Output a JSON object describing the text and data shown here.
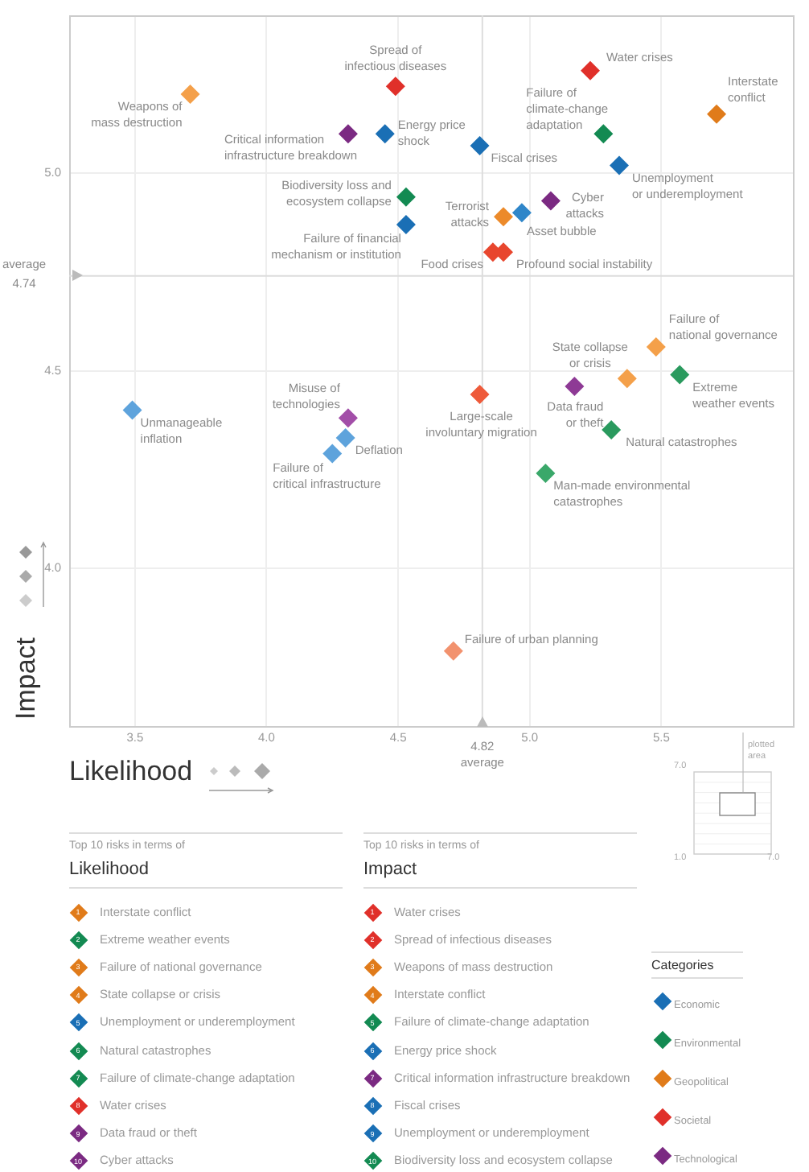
{
  "chart_data": {
    "type": "scatter",
    "xlabel": "Likelihood",
    "ylabel": "Impact",
    "legend_title": "Categories",
    "legend": "bottom right",
    "marker": "diamond",
    "grid": true,
    "xlim": [
      3.25,
      6.0
    ],
    "ylim": [
      3.6,
      5.4
    ],
    "xticks": [
      3.5,
      {
        "value": 4,
        "label": "4.0"
      },
      4.5,
      {
        "value": 5,
        "label": "5.0"
      },
      5.5
    ],
    "yticks": [
      {
        "value": 4,
        "label": "4.0"
      },
      4.5,
      {
        "value": 5,
        "label": "5.0"
      }
    ],
    "ref_lines": [
      {
        "axis": "y",
        "value": 4.74,
        "label": "average\n4.74",
        "color": "#dddddd"
      },
      {
        "axis": "x",
        "value": 4.82,
        "label": "4.82\naverage",
        "color": "#dddddd"
      }
    ],
    "series": [
      {
        "name": "Economic",
        "color": "#1a6fb5",
        "x": [
          4.45,
          4.53,
          4.81,
          5.34,
          4.97,
          3.49,
          4.3,
          4.25
        ],
        "values": [
          5.1,
          4.87,
          5.07,
          5.02,
          4.9,
          4.4,
          4.33,
          4.29
        ],
        "colors": [
          "#1a6fb5",
          "#1a6fb5",
          "#1a6fb5",
          "#1a6fb5",
          "#2f86c9",
          "#5ea3dc",
          "#5ea3dc",
          "#5ea3dc"
        ]
      },
      {
        "name": "Environmental",
        "color": "#138a52",
        "x": [
          4.53,
          5.28,
          5.57,
          5.31,
          5.06
        ],
        "values": [
          4.94,
          5.1,
          4.49,
          4.35,
          4.24
        ],
        "colors": [
          "#138a52",
          "#138a52",
          "#2a9a5e",
          "#2a9a5e",
          "#3aa86a"
        ]
      },
      {
        "name": "Geopolitical",
        "color": "#e07b1a",
        "x": [
          3.71,
          5.71,
          4.9,
          5.48,
          5.37
        ],
        "values": [
          5.2,
          5.15,
          4.89,
          4.56,
          4.48
        ],
        "colors": [
          "#f4a04a",
          "#e07b1a",
          "#ec8a2a",
          "#f4a04a",
          "#f4a04a"
        ]
      },
      {
        "name": "Societal",
        "color": "#e0302a",
        "x": [
          4.49,
          5.23,
          4.86,
          4.9,
          4.81,
          4.71
        ],
        "values": [
          5.22,
          5.26,
          4.8,
          4.8,
          4.44,
          3.79
        ],
        "colors": [
          "#e0302a",
          "#e0302a",
          "#e8462e",
          "#e8462e",
          "#ee5a3a",
          "#f2926e"
        ]
      },
      {
        "name": "Technological",
        "color": "#7b2a82",
        "x": [
          4.31,
          5.08,
          5.17,
          4.31
        ],
        "values": [
          5.1,
          4.93,
          4.46,
          4.38
        ],
        "colors": [
          "#7b2a82",
          "#7b2a82",
          "#8e3a95",
          "#a24ea8"
        ]
      }
    ],
    "annotations": [
      {
        "text": "Weapons of\nmass destruction",
        "x": 3.71,
        "y": 5.2
      },
      {
        "text": "Spread of\ninfectious diseases",
        "x": 4.49,
        "y": 5.22
      },
      {
        "text": "Critical information\ninfrastructure breakdown",
        "x": 4.31,
        "y": 5.1
      },
      {
        "text": "Energy price\nshock",
        "x": 4.45,
        "y": 5.1
      },
      {
        "text": "Biodiversity loss and\necosystem collapse",
        "x": 4.53,
        "y": 4.94
      },
      {
        "text": "Failure of financial\nmechanism or institution",
        "x": 4.53,
        "y": 4.87
      },
      {
        "text": "Water crises",
        "x": 5.23,
        "y": 5.26
      },
      {
        "text": "Interstate\nconflict",
        "x": 5.71,
        "y": 5.15
      },
      {
        "text": "Failure of\nclimate-change\nadaptation",
        "x": 5.28,
        "y": 5.1
      },
      {
        "text": "Fiscal crises",
        "x": 4.81,
        "y": 5.07
      },
      {
        "text": "Unemployment\nor underemployment",
        "x": 5.34,
        "y": 5.02
      },
      {
        "text": "Cyber\nattacks",
        "x": 5.08,
        "y": 4.93
      },
      {
        "text": "Terrorist\nattacks",
        "x": 4.9,
        "y": 4.89
      },
      {
        "text": "Asset bubble",
        "x": 4.97,
        "y": 4.9
      },
      {
        "text": "Food crises",
        "x": 4.86,
        "y": 4.8
      },
      {
        "text": "Profound social instability",
        "x": 4.9,
        "y": 4.8
      },
      {
        "text": "Failure of\nnational governance",
        "x": 5.48,
        "y": 4.56
      },
      {
        "text": "State collapse\nor crisis",
        "x": 5.37,
        "y": 4.48
      },
      {
        "text": "Extreme\nweather events",
        "x": 5.57,
        "y": 4.49
      },
      {
        "text": "Data fraud\nor theft",
        "x": 5.17,
        "y": 4.46
      },
      {
        "text": "Large-scale\ninvoluntary migration",
        "x": 4.81,
        "y": 4.44
      },
      {
        "text": "Unmanageable\ninflation",
        "x": 3.49,
        "y": 4.4
      },
      {
        "text": "Misuse of\ntechnologies",
        "x": 4.31,
        "y": 4.38
      },
      {
        "text": "Deflation",
        "x": 4.3,
        "y": 4.33
      },
      {
        "text": "Failure of\ncritical infrastructure",
        "x": 4.25,
        "y": 4.29
      },
      {
        "text": "Natural catastrophes",
        "x": 5.31,
        "y": 4.35
      },
      {
        "text": "Man-made environmental\ncatastrophes",
        "x": 5.06,
        "y": 4.24
      },
      {
        "text": "Failure of urban planning",
        "x": 4.71,
        "y": 3.79
      },
      "Top 10 risks in terms of",
      "Likelihood",
      "1",
      "Interstate conflict",
      "2",
      "Extreme weather events",
      "3",
      "Failure of national governance",
      "4",
      "State collapse or crisis",
      "5",
      "Unemployment or underemployment",
      "6",
      "Natural catastrophes",
      "7",
      "Failure of climate-change adaptation",
      "8",
      "Water crises",
      "9",
      "Data fraud or theft",
      "10",
      "Cyber attacks",
      "Top 10 risks in terms of",
      "Impact",
      "1",
      "Water crises",
      "2",
      "Spread of infectious diseases",
      "3",
      "Weapons of mass destruction",
      "4",
      "Interstate conflict",
      "5",
      "Failure of climate-change adaptation",
      "6",
      "Energy price shock",
      "7",
      "Critical information infrastructure breakdown",
      "8",
      "Fiscal crises",
      "9",
      "Unemployment or underemployment",
      "10",
      "Biodiversity loss and ecosystem collapse",
      "plotted area",
      "7.0",
      "1.0",
      "7.0"
    ]
  }
}
